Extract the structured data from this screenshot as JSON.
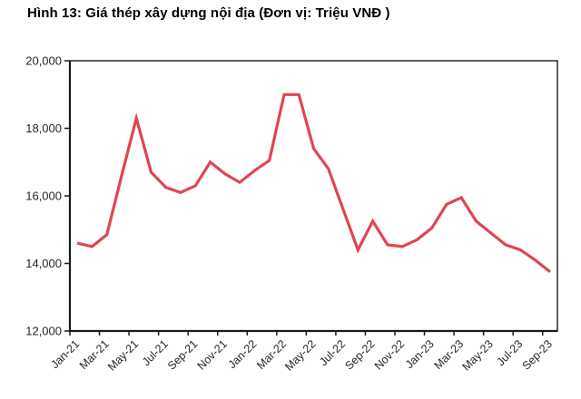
{
  "title": "Hình 13: Giá thép xây dựng nội địa (Đơn vị: Triệu VNĐ )",
  "colors": {
    "line": "#e04551",
    "axis": "#1a1a1a",
    "tick_label": "#262626",
    "title_text": "#000000",
    "background": "#ffffff"
  },
  "chart_data": {
    "type": "line",
    "title": "Hình 13: Giá thép xây dựng nội địa (Đơn vị: Triệu VNĐ )",
    "unit_note": "Đơn vị: Triệu VNĐ",
    "xlabel": "",
    "ylabel": "",
    "grid": false,
    "legend_position": "none",
    "ylim": [
      12000,
      20000
    ],
    "y_ticks": [
      12000,
      14000,
      16000,
      18000,
      20000
    ],
    "y_tick_labels": [
      "12,000",
      "14,000",
      "16,000",
      "18,000",
      "20,000"
    ],
    "x_tick_labels": [
      "Jan-21",
      "Mar-21",
      "May-21",
      "Jul-21",
      "Sep-21",
      "Nov-21",
      "Jan-22",
      "Mar-22",
      "May-22",
      "Jul-22",
      "Sep-22",
      "Nov-22",
      "Jan-23",
      "Mar-23",
      "May-23",
      "Jul-23",
      "Sep-23"
    ],
    "x": [
      "Jan-21",
      "Feb-21",
      "Mar-21",
      "Apr-21",
      "May-21",
      "Jun-21",
      "Jul-21",
      "Aug-21",
      "Sep-21",
      "Oct-21",
      "Nov-21",
      "Dec-21",
      "Jan-22",
      "Feb-22",
      "Mar-22",
      "Apr-22",
      "May-22",
      "Jun-22",
      "Jul-22",
      "Aug-22",
      "Sep-22",
      "Oct-22",
      "Nov-22",
      "Dec-22",
      "Jan-23",
      "Feb-23",
      "Mar-23",
      "Apr-23",
      "May-23",
      "Jun-23",
      "Jul-23",
      "Aug-23",
      "Sep-23"
    ],
    "series": [
      {
        "name": "Giá thép xây dựng nội địa",
        "color": "#e04551",
        "values": [
          14600,
          14500,
          14850,
          16600,
          18300,
          16700,
          16250,
          16100,
          16300,
          17000,
          16650,
          16400,
          16750,
          17050,
          19000,
          19000,
          17400,
          16800,
          15600,
          14400,
          15250,
          14550,
          14500,
          14700,
          15050,
          15750,
          15950,
          15250,
          14900,
          14550,
          14400,
          14100,
          13750
        ]
      }
    ]
  }
}
